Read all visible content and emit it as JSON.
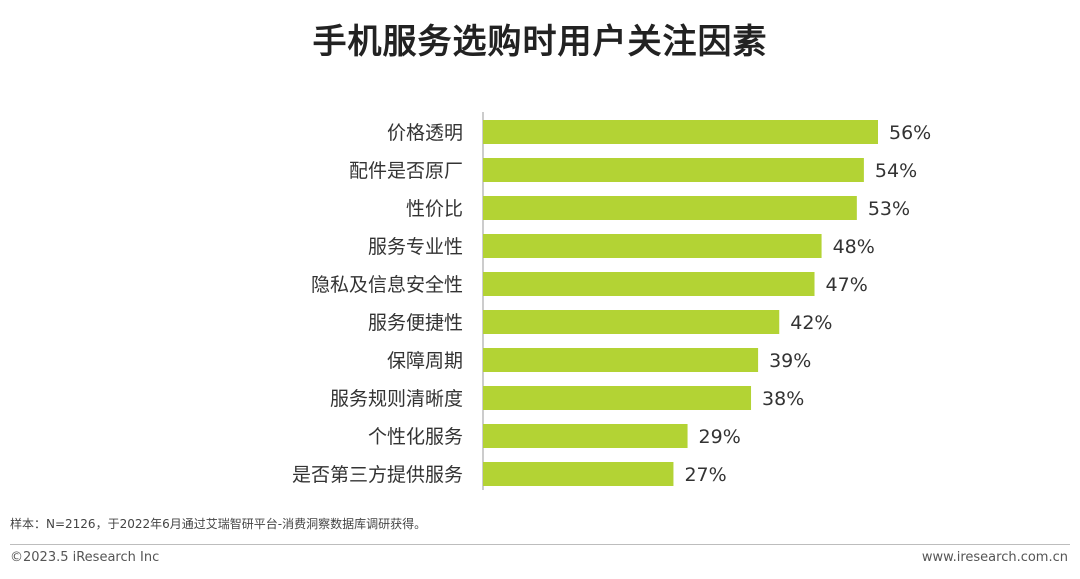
{
  "chart_data": {
    "type": "bar",
    "orientation": "horizontal",
    "title": "手机服务选购时用户关注因素",
    "categories": [
      "价格透明",
      "配件是否原厂",
      "性价比",
      "服务专业性",
      "隐私及信息安全性",
      "服务便捷性",
      "保障周期",
      "服务规则清晰度",
      "个性化服务",
      "是否第三方提供服务"
    ],
    "values": [
      56,
      54,
      53,
      48,
      47,
      42,
      39,
      38,
      29,
      27
    ],
    "value_labels": [
      "56%",
      "54%",
      "53%",
      "48%",
      "47%",
      "42%",
      "39%",
      "38%",
      "29%",
      "27%"
    ],
    "unit": "%",
    "xlim": [
      0,
      60
    ],
    "grid": false,
    "legend": "none",
    "bar_color": "#b3d334"
  },
  "source_note": "样本：N=2126，于2022年6月通过艾瑞智研平台-消费洞察数据库调研获得。",
  "footer": {
    "copyright": "©2023.5 iResearch Inc",
    "website": "www.iresearch.com.cn"
  }
}
